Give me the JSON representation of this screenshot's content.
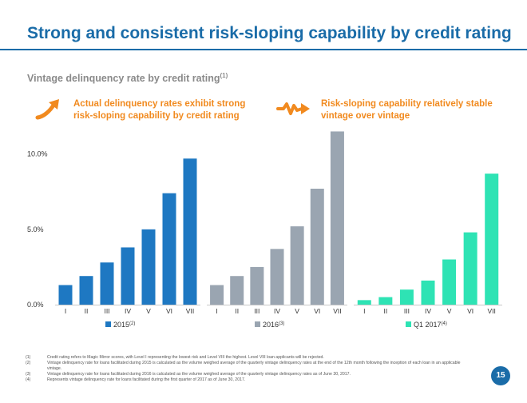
{
  "page": {
    "title": "Strong and consistent risk-sloping capability by credit rating",
    "subtitle": "Vintage delinquency rate by credit rating",
    "subtitle_sup": "(1)",
    "callout_left": {
      "line1": "Actual delinquency rates exhibit strong",
      "line2": "risk-sloping capability by credit rating",
      "icon": "trending-up-arrow-icon"
    },
    "callout_right": {
      "line1": "Risk-sloping capability relatively stable",
      "line2": "vintage over vintage",
      "icon": "stable-wave-arrow-icon"
    },
    "page_number": "15",
    "footnotes": [
      {
        "num": "(1)",
        "text": "Credit rating refers to Magic Mirror scores, with Level I representing the lowest risk and Level VIII the highest. Level VIII loan applicants will be rejected."
      },
      {
        "num": "(2)",
        "text": "Vintage delinquency rate for loans facilitated during 2015 is calculated as the volume weighed average of the quarterly vintage delinquency rates at the end of the 12th month following the inception of each loan in an applicable vintage."
      },
      {
        "num": "(3)",
        "text": "Vintage delinquency rate for loans facilitated during 2016 is calculated as the volume weighed average of the quarterly vintage delinquency rates as of June 30, 2017."
      },
      {
        "num": "(4)",
        "text": "Represents vintage delinquency rate for loans facilitated during the first quarter of 2017 as of June 30, 2017."
      }
    ],
    "colors": {
      "title": "#1a6ca8",
      "accent": "#f18a1f"
    }
  },
  "chart_data": {
    "type": "bar",
    "categories": [
      "I",
      "II",
      "III",
      "IV",
      "V",
      "VI",
      "VII"
    ],
    "y_ticks": [
      "0.0%",
      "5.0%",
      "10.0%"
    ],
    "ylim": [
      0,
      12
    ],
    "grid": false,
    "legend_placement": "bottom",
    "series": [
      {
        "name": "2015",
        "sup": "(2)",
        "color": "#1e78c2",
        "values": [
          1.3,
          1.9,
          2.8,
          3.8,
          5.0,
          7.4,
          9.7
        ]
      },
      {
        "name": "2016",
        "sup": "(3)",
        "color": "#9aa5b1",
        "values": [
          1.3,
          1.9,
          2.5,
          3.7,
          5.2,
          7.7,
          11.5
        ]
      },
      {
        "name": "Q1 2017",
        "sup": "(4)",
        "color": "#2ee3b4",
        "values": [
          0.3,
          0.5,
          1.0,
          1.6,
          3.0,
          4.8,
          8.7
        ]
      }
    ]
  }
}
